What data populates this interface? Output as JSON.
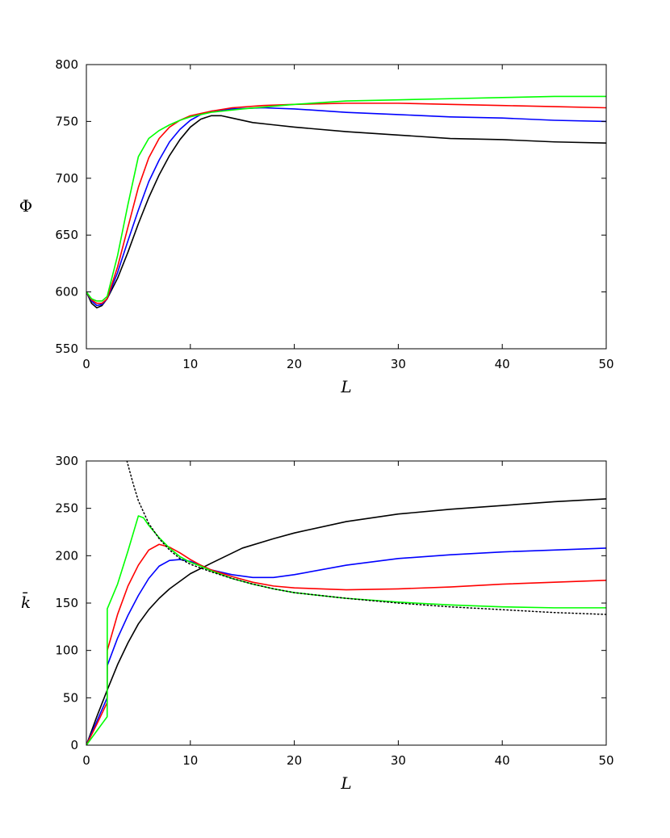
{
  "chart_data": [
    {
      "type": "line",
      "xlabel": "L",
      "ylabel": "Φ",
      "xlim": [
        0,
        50
      ],
      "ylim": [
        550,
        800
      ],
      "x_ticks": [
        "0",
        "10",
        "20",
        "30",
        "40",
        "50"
      ],
      "y_ticks": [
        "550",
        "600",
        "650",
        "700",
        "750",
        "800"
      ],
      "grid": false,
      "series": [
        {
          "color": "#000000",
          "dash": false,
          "points": [
            [
              0,
              600
            ],
            [
              0.5,
              590
            ],
            [
              1,
              586
            ],
            [
              1.5,
              588
            ],
            [
              2,
              594
            ],
            [
              3,
              612
            ],
            [
              4,
              635
            ],
            [
              5,
              660
            ],
            [
              6,
              683
            ],
            [
              7,
              703
            ],
            [
              8,
              720
            ],
            [
              9,
              734
            ],
            [
              10,
              745
            ],
            [
              11,
              752
            ],
            [
              12,
              755
            ],
            [
              13,
              755
            ],
            [
              14,
              753
            ],
            [
              16,
              749
            ],
            [
              18,
              747
            ],
            [
              20,
              745
            ],
            [
              25,
              741
            ],
            [
              30,
              738
            ],
            [
              35,
              735
            ],
            [
              40,
              734
            ],
            [
              45,
              732
            ],
            [
              50,
              731
            ]
          ]
        },
        {
          "color": "#0000ff",
          "dash": false,
          "points": [
            [
              0,
              600
            ],
            [
              0.5,
              592
            ],
            [
              1,
              588
            ],
            [
              1.5,
              589
            ],
            [
              2,
              594
            ],
            [
              3,
              617
            ],
            [
              4,
              645
            ],
            [
              5,
              672
            ],
            [
              6,
              697
            ],
            [
              7,
              716
            ],
            [
              8,
              732
            ],
            [
              9,
              743
            ],
            [
              10,
              751
            ],
            [
              11,
              756
            ],
            [
              12,
              759
            ],
            [
              14,
              761
            ],
            [
              17,
              762
            ],
            [
              20,
              761
            ],
            [
              25,
              758
            ],
            [
              30,
              756
            ],
            [
              35,
              754
            ],
            [
              40,
              753
            ],
            [
              45,
              751
            ],
            [
              50,
              750
            ]
          ]
        },
        {
          "color": "#ff0000",
          "dash": false,
          "points": [
            [
              0,
              600
            ],
            [
              0.5,
              593
            ],
            [
              1,
              590
            ],
            [
              1.5,
              590
            ],
            [
              2,
              594
            ],
            [
              3,
              622
            ],
            [
              4,
              657
            ],
            [
              5,
              692
            ],
            [
              6,
              718
            ],
            [
              7,
              735
            ],
            [
              8,
              745
            ],
            [
              9,
              751
            ],
            [
              10,
              755
            ],
            [
              12,
              759
            ],
            [
              14,
              762
            ],
            [
              17,
              764
            ],
            [
              20,
              765
            ],
            [
              25,
              766
            ],
            [
              30,
              766
            ],
            [
              35,
              765
            ],
            [
              40,
              764
            ],
            [
              45,
              763
            ],
            [
              50,
              762
            ]
          ]
        },
        {
          "color": "#00ff00",
          "dash": false,
          "points": [
            [
              0,
              600
            ],
            [
              0.5,
              594
            ],
            [
              1,
              592
            ],
            [
              1.5,
              592
            ],
            [
              2,
              596
            ],
            [
              3,
              632
            ],
            [
              4,
              677
            ],
            [
              5,
              719
            ],
            [
              6,
              735
            ],
            [
              7,
              742
            ],
            [
              8,
              747
            ],
            [
              9,
              751
            ],
            [
              10,
              754
            ],
            [
              12,
              758
            ],
            [
              15,
              761
            ],
            [
              20,
              765
            ],
            [
              25,
              768
            ],
            [
              30,
              769
            ],
            [
              35,
              770
            ],
            [
              40,
              771
            ],
            [
              45,
              772
            ],
            [
              50,
              772
            ]
          ]
        }
      ]
    },
    {
      "type": "line",
      "xlabel": "L",
      "ylabel": "k̄",
      "xlim": [
        0,
        50
      ],
      "ylim": [
        0,
        300
      ],
      "x_ticks": [
        "0",
        "10",
        "20",
        "30",
        "40",
        "50"
      ],
      "y_ticks": [
        "0",
        "50",
        "100",
        "150",
        "200",
        "250",
        "300"
      ],
      "grid": false,
      "series": [
        {
          "color": "#000000",
          "dash": false,
          "points": [
            [
              0,
              0
            ],
            [
              1,
              30
            ],
            [
              2,
              58
            ],
            [
              3,
              85
            ],
            [
              4,
              108
            ],
            [
              5,
              128
            ],
            [
              6,
              143
            ],
            [
              7,
              155
            ],
            [
              8,
              165
            ],
            [
              10,
              181
            ],
            [
              12,
              192
            ],
            [
              15,
              208
            ],
            [
              18,
              218
            ],
            [
              20,
              224
            ],
            [
              25,
              236
            ],
            [
              30,
              244
            ],
            [
              35,
              249
            ],
            [
              40,
              253
            ],
            [
              45,
              257
            ],
            [
              50,
              260
            ]
          ]
        },
        {
          "color": "#0000ff",
          "dash": false,
          "points": [
            [
              0,
              0
            ],
            [
              1,
              25
            ],
            [
              2,
              50
            ],
            [
              2.01,
              84
            ],
            [
              3,
              113
            ],
            [
              4,
              137
            ],
            [
              5,
              158
            ],
            [
              6,
              176
            ],
            [
              7,
              189
            ],
            [
              8,
              195
            ],
            [
              9,
              196
            ],
            [
              10,
              194
            ],
            [
              11,
              190
            ],
            [
              12,
              185
            ],
            [
              14,
              180
            ],
            [
              16,
              177
            ],
            [
              18,
              177
            ],
            [
              20,
              180
            ],
            [
              25,
              190
            ],
            [
              30,
              197
            ],
            [
              35,
              201
            ],
            [
              40,
              204
            ],
            [
              45,
              206
            ],
            [
              50,
              208
            ]
          ]
        },
        {
          "color": "#ff0000",
          "dash": false,
          "points": [
            [
              0,
              0
            ],
            [
              1,
              22
            ],
            [
              2,
              45
            ],
            [
              2.01,
              100
            ],
            [
              3,
              138
            ],
            [
              4,
              168
            ],
            [
              5,
              190
            ],
            [
              6,
              206
            ],
            [
              7,
              212
            ],
            [
              8,
              209
            ],
            [
              9,
              203
            ],
            [
              10,
              196
            ],
            [
              11,
              190
            ],
            [
              12,
              185
            ],
            [
              14,
              178
            ],
            [
              16,
              172
            ],
            [
              18,
              168
            ],
            [
              20,
              166
            ],
            [
              25,
              164
            ],
            [
              30,
              165
            ],
            [
              35,
              167
            ],
            [
              40,
              170
            ],
            [
              45,
              172
            ],
            [
              50,
              174
            ]
          ]
        },
        {
          "color": "#00ff00",
          "dash": false,
          "points": [
            [
              0,
              0
            ],
            [
              1,
              15
            ],
            [
              2,
              30
            ],
            [
              2.01,
              144
            ],
            [
              3,
              170
            ],
            [
              4,
              205
            ],
            [
              5,
              242
            ],
            [
              5.5,
              240
            ],
            [
              6,
              232
            ],
            [
              7,
              219
            ],
            [
              8,
              208
            ],
            [
              9,
              199
            ],
            [
              10,
              193
            ],
            [
              11,
              189
            ],
            [
              12,
              184
            ],
            [
              14,
              176
            ],
            [
              16,
              170
            ],
            [
              18,
              165
            ],
            [
              20,
              161
            ],
            [
              25,
              155
            ],
            [
              30,
              151
            ],
            [
              35,
              148
            ],
            [
              40,
              146
            ],
            [
              45,
              145
            ],
            [
              50,
              145
            ]
          ]
        },
        {
          "color": "#000000",
          "dash": true,
          "points": [
            [
              3.9,
              300
            ],
            [
              4.5,
              276
            ],
            [
              5,
              258
            ],
            [
              6,
              234
            ],
            [
              7,
              218
            ],
            [
              8,
              206
            ],
            [
              9,
              197
            ],
            [
              10,
              191
            ],
            [
              11,
              187
            ],
            [
              12,
              183
            ],
            [
              14,
              176
            ],
            [
              16,
              170
            ],
            [
              18,
              165
            ],
            [
              20,
              161
            ],
            [
              25,
              155
            ],
            [
              30,
              150
            ],
            [
              35,
              146
            ],
            [
              40,
              143
            ],
            [
              45,
              140
            ],
            [
              50,
              138
            ]
          ]
        }
      ]
    }
  ]
}
